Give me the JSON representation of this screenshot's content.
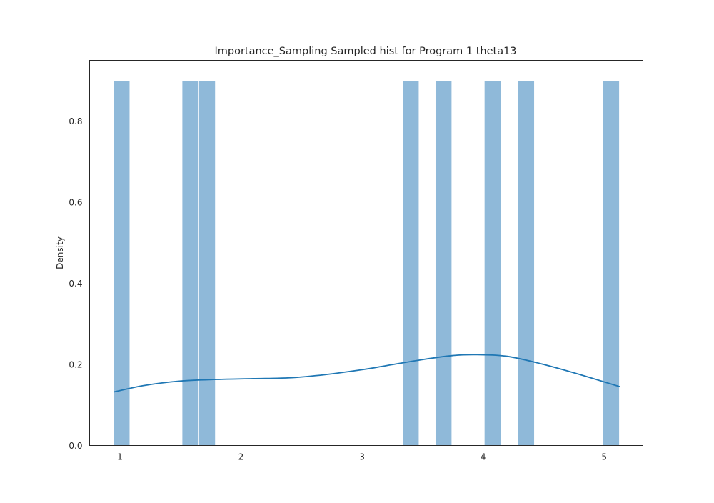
{
  "chart_data": {
    "type": "bar",
    "title": "Importance_Sampling Sampled hist for Program 1 theta13",
    "xlabel": "",
    "ylabel": "Density",
    "xlim": [
      0.75,
      5.32
    ],
    "ylim": [
      0,
      0.95
    ],
    "xticks": [
      1,
      2,
      3,
      4,
      5
    ],
    "yticks": [
      0.0,
      0.2,
      0.4,
      0.6,
      0.8
    ],
    "ytick_labels": [
      "0.0",
      "0.2",
      "0.4",
      "0.6",
      "0.8"
    ],
    "grid": false,
    "legend": "none",
    "colors": {
      "bar_fill": "#8fb9d9",
      "bar_edge": "#ffffff",
      "kde_line": "#1f77b4",
      "axes_edge": "#262626",
      "text": "#262626"
    },
    "bins": [
      {
        "x0": 0.945,
        "x1": 1.083,
        "density": 0.9
      },
      {
        "x0": 1.513,
        "x1": 1.651,
        "density": 0.9
      },
      {
        "x0": 1.651,
        "x1": 1.789,
        "density": 0.9
      },
      {
        "x0": 3.333,
        "x1": 3.471,
        "density": 0.9
      },
      {
        "x0": 3.604,
        "x1": 3.742,
        "density": 0.9
      },
      {
        "x0": 4.009,
        "x1": 4.147,
        "density": 0.9
      },
      {
        "x0": 4.286,
        "x1": 4.424,
        "density": 0.9
      },
      {
        "x0": 4.988,
        "x1": 5.126,
        "density": 0.9
      }
    ],
    "kde": {
      "x": [
        0.95,
        1.2,
        1.5,
        1.8,
        2.1,
        2.4,
        2.7,
        3.0,
        3.2,
        3.5,
        3.75,
        3.95,
        4.2,
        4.5,
        4.8,
        5.13
      ],
      "y": [
        0.132,
        0.148,
        0.159,
        0.163,
        0.165,
        0.167,
        0.175,
        0.187,
        0.197,
        0.212,
        0.222,
        0.224,
        0.22,
        0.2,
        0.175,
        0.145
      ]
    }
  }
}
